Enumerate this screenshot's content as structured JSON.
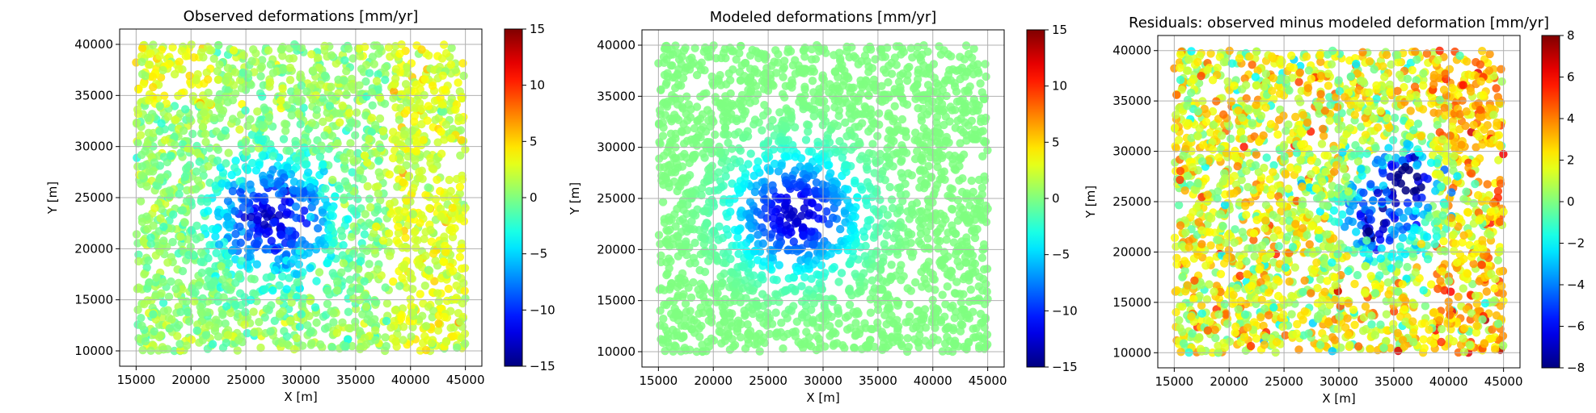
{
  "chart_data": [
    {
      "type": "scatter",
      "title": "Observed deformations [mm/yr]",
      "xlabel": "X [m]",
      "ylabel": "Y [m]",
      "xlim": [
        13500,
        46500
      ],
      "ylim": [
        8500,
        41500
      ],
      "xticks": [
        15000,
        20000,
        25000,
        30000,
        35000,
        40000,
        45000
      ],
      "yticks": [
        10000,
        15000,
        20000,
        25000,
        30000,
        35000,
        40000
      ],
      "grid": true,
      "colormap": "jet",
      "clim": [
        -15,
        15
      ],
      "colorbar_ticks": [
        -15,
        -10,
        -5,
        0,
        5,
        10,
        15
      ],
      "field": {
        "domain_x": [
          15000,
          45000
        ],
        "domain_y": [
          10000,
          40000
        ],
        "source_center": [
          27500,
          23000
        ],
        "peak_value": -13,
        "background_value": 0.5,
        "noise": 2.5
      }
    },
    {
      "type": "scatter",
      "title": "Modeled deformations [mm/yr]",
      "xlabel": "X [m]",
      "ylabel": "Y [m]",
      "xlim": [
        13500,
        46500
      ],
      "ylim": [
        8500,
        41500
      ],
      "xticks": [
        15000,
        20000,
        25000,
        30000,
        35000,
        40000,
        45000
      ],
      "yticks": [
        10000,
        15000,
        20000,
        25000,
        30000,
        35000,
        40000
      ],
      "grid": true,
      "colormap": "jet",
      "clim": [
        -15,
        15
      ],
      "colorbar_ticks": [
        -15,
        -10,
        -5,
        0,
        5,
        10,
        15
      ],
      "field": {
        "domain_x": [
          15000,
          45000
        ],
        "domain_y": [
          10000,
          40000
        ],
        "source_center": [
          27500,
          23500
        ],
        "peak_value": -13,
        "background_value": 0,
        "noise": 0
      }
    },
    {
      "type": "scatter",
      "title": "Residuals: observed minus modeled deformation [mm/yr]",
      "xlabel": "X [m]",
      "ylabel": "Y [m]",
      "xlim": [
        13500,
        46500
      ],
      "ylim": [
        8500,
        41500
      ],
      "xticks": [
        15000,
        20000,
        25000,
        30000,
        35000,
        40000,
        45000
      ],
      "yticks": [
        10000,
        15000,
        20000,
        25000,
        30000,
        35000,
        40000
      ],
      "grid": true,
      "colormap": "jet",
      "clim": [
        -8,
        8
      ],
      "colorbar_ticks": [
        -8,
        -6,
        -4,
        -2,
        0,
        2,
        4,
        6,
        8
      ],
      "field": {
        "domain_x": [
          15000,
          45000
        ],
        "domain_y": [
          10000,
          40000
        ],
        "source_center": [
          35000,
          25000
        ],
        "peak_value": -6,
        "background_value": 1.5,
        "noise": 3
      }
    }
  ]
}
